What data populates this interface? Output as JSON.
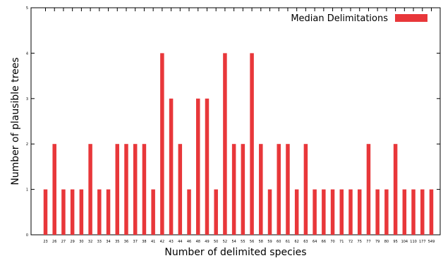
{
  "chart_data": {
    "type": "bar",
    "title": "",
    "xlabel": "Number of delimited species",
    "ylabel": "Number of plausible trees",
    "ylim": [
      0,
      5
    ],
    "yticks": [
      0,
      1,
      2,
      3,
      4,
      5
    ],
    "grid": false,
    "legend_position": "top-right",
    "bar_color": "#e8373a",
    "series": [
      {
        "name": "Median Delimitations",
        "values": [
          1,
          2,
          1,
          1,
          1,
          2,
          1,
          1,
          2,
          2,
          2,
          2,
          1,
          4,
          3,
          2,
          1,
          3,
          3,
          1,
          4,
          2,
          2,
          4,
          2,
          1,
          2,
          2,
          1,
          2,
          1,
          1,
          1,
          1,
          1,
          1,
          2,
          1,
          1,
          2,
          1,
          1,
          1,
          1
        ]
      }
    ],
    "categories": [
      "23",
      "26",
      "27",
      "29",
      "30",
      "32",
      "33",
      "34",
      "35",
      "36",
      "37",
      "38",
      "41",
      "42",
      "43",
      "44",
      "46",
      "48",
      "49",
      "50",
      "52",
      "54",
      "55",
      "56",
      "58",
      "59",
      "60",
      "61",
      "62",
      "63",
      "64",
      "66",
      "70",
      "71",
      "72",
      "75",
      "77",
      "79",
      "80",
      "95",
      "104",
      "110",
      "177",
      "549"
    ]
  }
}
